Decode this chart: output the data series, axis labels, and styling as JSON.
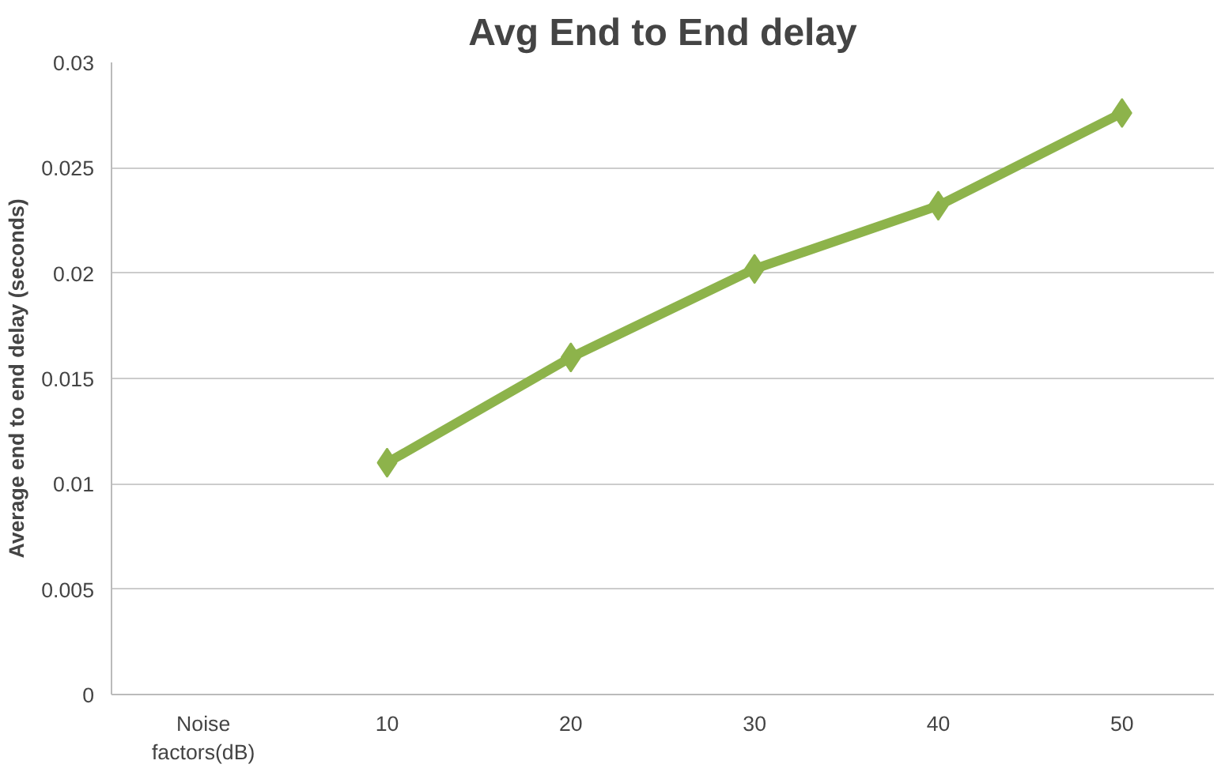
{
  "chart_data": {
    "type": "line",
    "title": "Avg End to End delay",
    "ylabel": "Average end to end delay (seconds)",
    "categories": [
      "Noise factors(dB)",
      "10",
      "20",
      "30",
      "40",
      "50"
    ],
    "series": [
      {
        "color": "#8db34b",
        "values": [
          null,
          0.011,
          0.016,
          0.0202,
          0.0232,
          0.0276
        ]
      }
    ],
    "ylim": [
      0,
      0.03
    ],
    "yticks": [
      0,
      0.005,
      0.01,
      0.015,
      0.02,
      0.025,
      0.03
    ],
    "grid": "y",
    "marker": "diamond",
    "line_style": "solid"
  }
}
